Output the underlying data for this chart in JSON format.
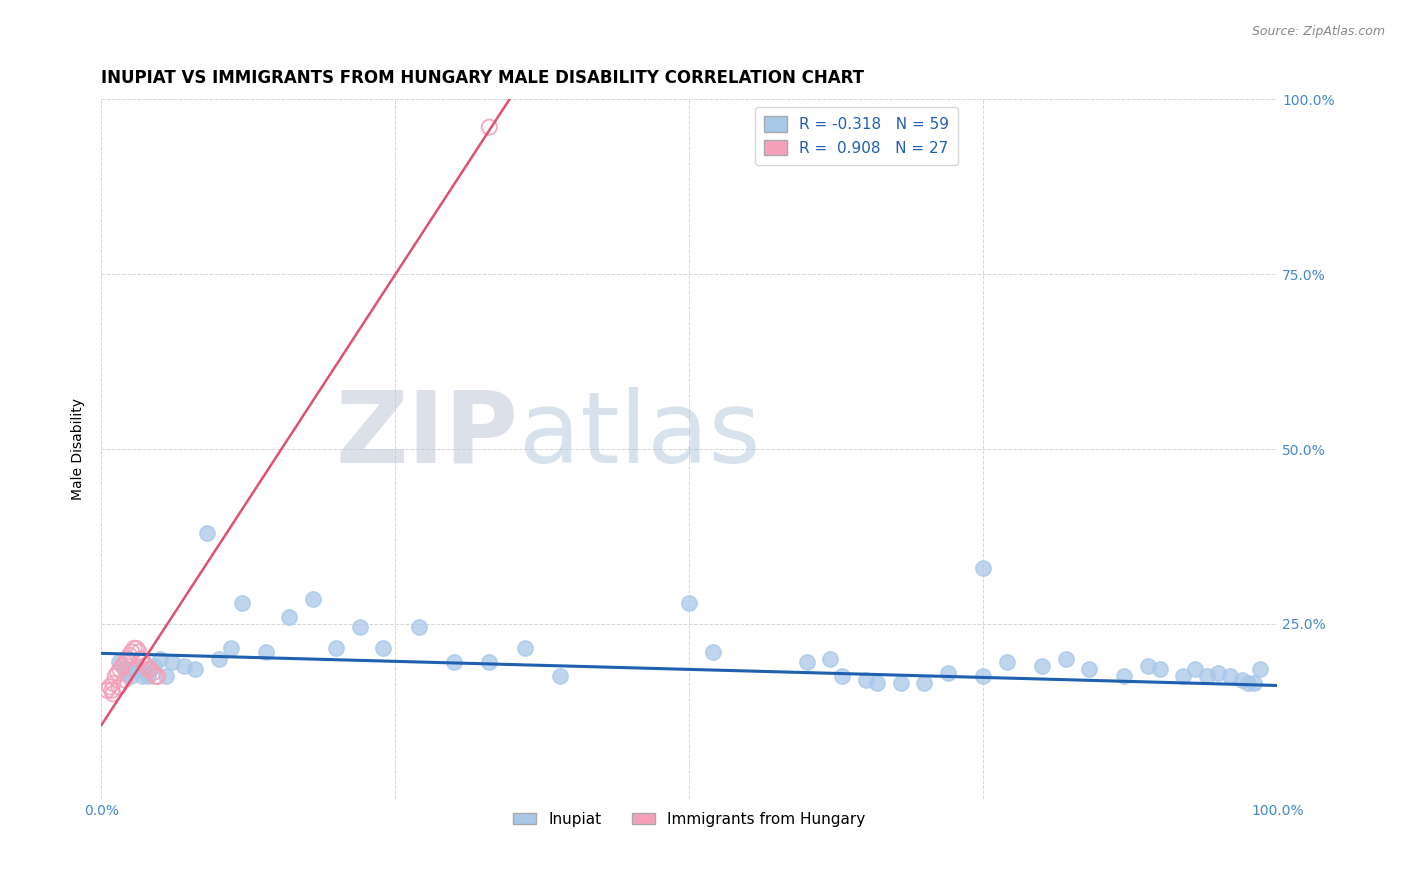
{
  "title": "INUPIAT VS IMMIGRANTS FROM HUNGARY MALE DISABILITY CORRELATION CHART",
  "source_text": "Source: ZipAtlas.com",
  "ylabel": "Male Disability",
  "xlim": [
    0.0,
    1.0
  ],
  "ylim": [
    0.0,
    1.0
  ],
  "xtick_vals": [
    0.0,
    0.25,
    0.5,
    0.75,
    1.0
  ],
  "xtick_labels": [
    "0.0%",
    "",
    "",
    "",
    "100.0%"
  ],
  "ytick_vals": [
    0.0,
    0.25,
    0.5,
    0.75,
    1.0
  ],
  "ytick_right_vals": [
    0.25,
    0.5,
    0.75,
    1.0
  ],
  "ytick_right_labels": [
    "25.0%",
    "50.0%",
    "75.0%",
    "100.0%"
  ],
  "blue_color": "#a8c8e8",
  "pink_color": "#f4a0b8",
  "blue_line_color": "#2060b0",
  "pink_line_color": "#e05070",
  "tick_color": "#4488cc",
  "legend_blue_label": "R = -0.318   N = 59",
  "legend_pink_label": "R =  0.908   N = 27",
  "legend_inupiat": "Inupiat",
  "legend_hungary": "Immigrants from Hungary",
  "title_fontsize": 12,
  "blue_scatter_x": [
    0.015,
    0.02,
    0.022,
    0.025,
    0.028,
    0.03,
    0.032,
    0.035,
    0.038,
    0.04,
    0.045,
    0.05,
    0.055,
    0.06,
    0.07,
    0.08,
    0.09,
    0.1,
    0.11,
    0.12,
    0.14,
    0.16,
    0.18,
    0.2,
    0.22,
    0.24,
    0.27,
    0.3,
    0.33,
    0.36,
    0.39,
    0.5,
    0.52,
    0.6,
    0.62,
    0.63,
    0.65,
    0.66,
    0.68,
    0.7,
    0.72,
    0.75,
    0.77,
    0.8,
    0.82,
    0.84,
    0.87,
    0.89,
    0.9,
    0.92,
    0.93,
    0.94,
    0.95,
    0.96,
    0.97,
    0.975,
    0.98,
    0.985,
    0.75
  ],
  "blue_scatter_y": [
    0.195,
    0.185,
    0.18,
    0.175,
    0.185,
    0.19,
    0.185,
    0.175,
    0.18,
    0.175,
    0.19,
    0.2,
    0.175,
    0.195,
    0.19,
    0.185,
    0.38,
    0.2,
    0.215,
    0.28,
    0.21,
    0.26,
    0.285,
    0.215,
    0.245,
    0.215,
    0.245,
    0.195,
    0.195,
    0.215,
    0.175,
    0.28,
    0.21,
    0.195,
    0.2,
    0.175,
    0.17,
    0.165,
    0.165,
    0.165,
    0.18,
    0.175,
    0.195,
    0.19,
    0.2,
    0.185,
    0.175,
    0.19,
    0.185,
    0.175,
    0.185,
    0.175,
    0.18,
    0.175,
    0.17,
    0.165,
    0.165,
    0.185,
    0.33
  ],
  "pink_scatter_x": [
    0.005,
    0.007,
    0.009,
    0.01,
    0.012,
    0.014,
    0.016,
    0.018,
    0.02,
    0.022,
    0.024,
    0.026,
    0.028,
    0.03,
    0.032,
    0.034,
    0.036,
    0.038,
    0.04,
    0.042,
    0.044,
    0.046,
    0.048,
    0.01,
    0.015,
    0.02,
    0.33
  ],
  "pink_scatter_y": [
    0.155,
    0.16,
    0.155,
    0.165,
    0.175,
    0.18,
    0.185,
    0.19,
    0.195,
    0.2,
    0.205,
    0.21,
    0.215,
    0.215,
    0.21,
    0.2,
    0.195,
    0.19,
    0.185,
    0.185,
    0.18,
    0.175,
    0.175,
    0.15,
    0.16,
    0.17,
    0.96
  ],
  "blue_trend_x": [
    0.0,
    1.0
  ],
  "blue_trend_y": [
    0.208,
    0.162
  ],
  "pink_trend_x": [
    0.0,
    0.355
  ],
  "pink_trend_y": [
    0.105,
    1.02
  ]
}
